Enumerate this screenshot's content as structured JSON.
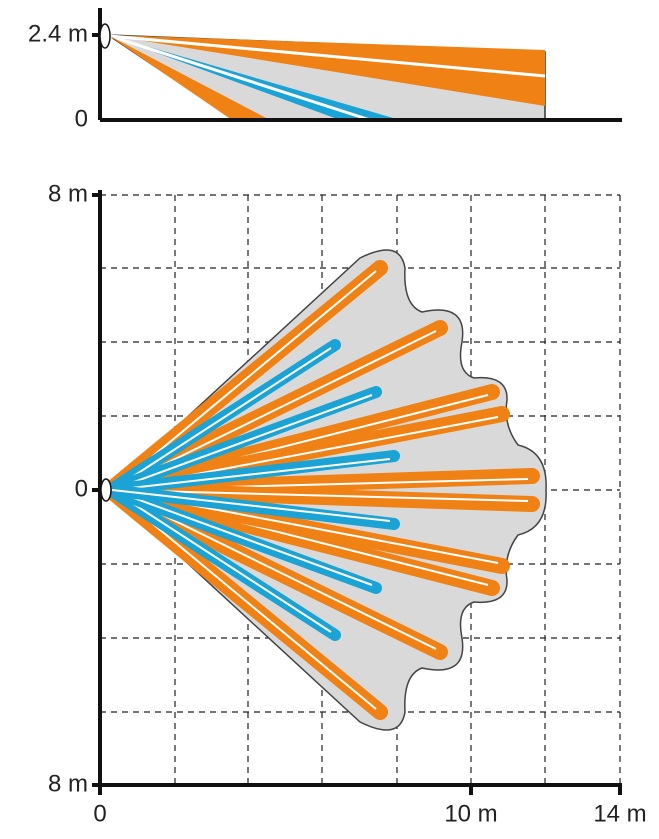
{
  "side_view": {
    "y_labels": [
      "2.4 m",
      "0"
    ]
  },
  "top_view": {
    "y_labels": [
      "8 m",
      "0",
      "8 m"
    ],
    "x_labels": [
      "0",
      "10 m",
      "14 m"
    ]
  }
}
